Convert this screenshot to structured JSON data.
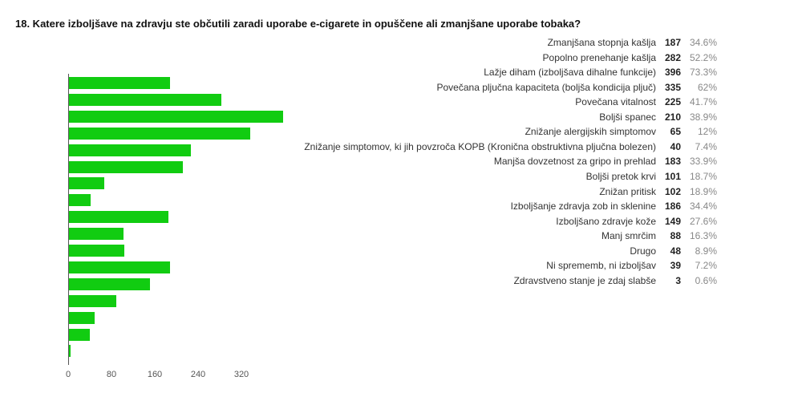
{
  "title": "18. Katere izboljšave na zdravju ste občutili zaradi uporabe e-cigarete in opuščene ali zmanjšane uporabe tobaka?",
  "colors": {
    "bar": "#11cc11",
    "axis": "#555555",
    "count_text": "#222222",
    "percent_text": "#888888"
  },
  "chart_data": {
    "type": "bar",
    "orientation": "horizontal",
    "title": "18. Katere izboljšave na zdravju ste občutili zaradi uporabe e-cigarete in opuščene ali zmanjšane uporabe tobaka?",
    "xlabel": "",
    "ylabel": "",
    "xlim": [
      0,
      400
    ],
    "x_ticks": [
      "0",
      "80",
      "160",
      "240",
      "320"
    ],
    "grid": false,
    "legend": "none",
    "categories_truncated": [
      "Zmanjšana…",
      "Popolno pr…",
      "Lažje diha…",
      "Povečana…",
      "Povečana v…",
      "Boljši spanec",
      "Znižanje al…",
      "Znižanje si…",
      "Manjša dov…",
      "Boljši preto…",
      "Znižan pritisk",
      "Izboljšanje…",
      "Izboljšano…",
      "Manj smrčim",
      "Drugo",
      "Ni spreme…",
      "Zdravstven…"
    ],
    "categories": [
      "Zmanjšana stopnja kašlja",
      "Popolno prenehanje kašlja",
      "Lažje diham (izboljšava dihalne funkcije)",
      "Povečana pljučna kapaciteta (boljša kondicija pljuč)",
      "Povečana vitalnost",
      "Boljši spanec",
      "Znižanje alergijskih simptomov",
      "Znižanje simptomov, ki jih povzroča KOPB (Kronična obstruktivna pljučna bolezen)",
      "Manjša dovzetnost za gripo in prehlad",
      "Boljši pretok krvi",
      "Znižan pritisk",
      "Izboljšanje zdravja zob in sklenine",
      "Izboljšano zdravje kože",
      "Manj smrčim",
      "Drugo",
      "Ni sprememb, ni izboljšav",
      "Zdravstveno stanje je zdaj slabše"
    ],
    "values": [
      187,
      282,
      396,
      335,
      225,
      210,
      65,
      40,
      183,
      101,
      102,
      186,
      149,
      88,
      48,
      39,
      3
    ],
    "percentages": [
      "34.6%",
      "52.2%",
      "73.3%",
      "62%",
      "41.7%",
      "38.9%",
      "12%",
      "7.4%",
      "33.9%",
      "18.7%",
      "18.9%",
      "34.4%",
      "27.6%",
      "16.3%",
      "8.9%",
      "7.2%",
      "0.6%"
    ]
  },
  "axis": {
    "ticks": [
      "0",
      "80",
      "160",
      "240",
      "320"
    ]
  },
  "bars": [
    {
      "short": "Zmanjšana…",
      "value": 187
    },
    {
      "short": "Popolno pr…",
      "value": 282
    },
    {
      "short": "Lažje diha…",
      "value": 396
    },
    {
      "short": "Povečana…",
      "value": 335
    },
    {
      "short": "Povečana v…",
      "value": 225
    },
    {
      "short": "Boljši spanec",
      "value": 210
    },
    {
      "short": "Znižanje al…",
      "value": 65
    },
    {
      "short": "Znižanje si…",
      "value": 40
    },
    {
      "short": "Manjša dov…",
      "value": 183
    },
    {
      "short": "Boljši preto…",
      "value": 101
    },
    {
      "short": "Znižan pritisk",
      "value": 102
    },
    {
      "short": "Izboljšanje…",
      "value": 186
    },
    {
      "short": "Izboljšano…",
      "value": 149
    },
    {
      "short": "Manj smrčim",
      "value": 88
    },
    {
      "short": "Drugo",
      "value": 48
    },
    {
      "short": "Ni spreme…",
      "value": 39
    },
    {
      "short": "Zdravstven…",
      "value": 3
    }
  ],
  "summary": [
    {
      "label": "Zmanjšana stopnja kašlja",
      "count": "187",
      "percent": "34.6%"
    },
    {
      "label": "Popolno prenehanje kašlja",
      "count": "282",
      "percent": "52.2%"
    },
    {
      "label": "Lažje diham (izboljšava dihalne funkcije)",
      "count": "396",
      "percent": "73.3%"
    },
    {
      "label": "Povečana pljučna kapaciteta (boljša kondicija pljuč)",
      "count": "335",
      "percent": "62%"
    },
    {
      "label": "Povečana vitalnost",
      "count": "225",
      "percent": "41.7%"
    },
    {
      "label": "Boljši spanec",
      "count": "210",
      "percent": "38.9%"
    },
    {
      "label": "Znižanje alergijskih simptomov",
      "count": "65",
      "percent": "12%"
    },
    {
      "label": "Znižanje simptomov, ki jih povzroča KOPB (Kronična obstruktivna pljučna bolezen)",
      "count": "40",
      "percent": "7.4%"
    },
    {
      "label": "Manjša dovzetnost za gripo in prehlad",
      "count": "183",
      "percent": "33.9%"
    },
    {
      "label": "Boljši pretok krvi",
      "count": "101",
      "percent": "18.7%"
    },
    {
      "label": "Znižan pritisk",
      "count": "102",
      "percent": "18.9%"
    },
    {
      "label": "Izboljšanje zdravja zob in sklenine",
      "count": "186",
      "percent": "34.4%"
    },
    {
      "label": "Izboljšano zdravje kože",
      "count": "149",
      "percent": "27.6%"
    },
    {
      "label": "Manj smrčim",
      "count": "88",
      "percent": "16.3%"
    },
    {
      "label": "Drugo",
      "count": "48",
      "percent": "8.9%"
    },
    {
      "label": "Ni sprememb, ni izboljšav",
      "count": "39",
      "percent": "7.2%"
    },
    {
      "label": "Zdravstveno stanje je zdaj slabše",
      "count": "3",
      "percent": "0.6%"
    }
  ]
}
